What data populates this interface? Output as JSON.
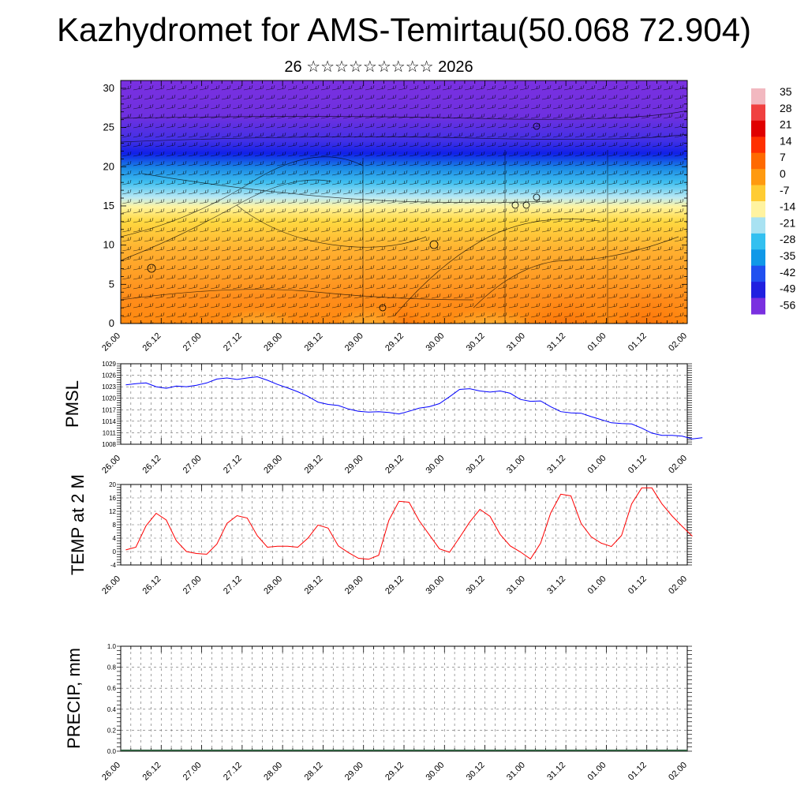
{
  "title": "Kazhydromet for AMS-Temirtau(50.068 72.904)",
  "subtitle": "26 ☆☆☆☆☆☆☆☆☆ 2026",
  "x_tick_labels": [
    "26.00",
    "26.12",
    "27.00",
    "27.12",
    "28.00",
    "28.12",
    "29.00",
    "29.12",
    "30.00",
    "30.12",
    "31.00",
    "31.12",
    "01.00",
    "01.12",
    "02.00"
  ],
  "colors": {
    "pmsl_line": "#0000ff",
    "temp_line": "#ff0000",
    "grid": "#666666"
  },
  "chart_data": [
    {
      "type": "heatmap",
      "name": "temperature-wind cross-section",
      "y_ticks": [
        0,
        5,
        10,
        15,
        20,
        25,
        30
      ],
      "ylim": [
        0,
        31
      ],
      "colorbar": {
        "labels": [
          "35",
          "28",
          "21",
          "14",
          "7",
          "0",
          "-7",
          "-14",
          "-21",
          "-28",
          "-35",
          "-42",
          "-49",
          "-56"
        ],
        "colors": [
          "#f2b8c0",
          "#f04040",
          "#e00000",
          "#ff3000",
          "#ff6a00",
          "#ff9a10",
          "#ffcc33",
          "#fff3a0",
          "#a8e2f2",
          "#33c0f0",
          "#1098e8",
          "#2050f0",
          "#2020e0",
          "#7a30e0"
        ]
      }
    },
    {
      "type": "line",
      "ylabel": "PMSL",
      "ylim": [
        1008,
        1029
      ],
      "y_ticks": [
        1008,
        1011,
        1014,
        1017,
        1020,
        1023,
        1026,
        1029
      ],
      "values": [
        1023.5,
        1023.8,
        1024,
        1023,
        1022.6,
        1023.2,
        1023,
        1023.4,
        1024,
        1025,
        1025.3,
        1024.9,
        1025.3,
        1025.6,
        1024.7,
        1023.6,
        1022.7,
        1021.7,
        1020.5,
        1019,
        1018.4,
        1018.1,
        1017.2,
        1016.6,
        1016.4,
        1016.5,
        1016.3,
        1015.9,
        1016.6,
        1017.4,
        1017.8,
        1018.6,
        1020.4,
        1022.3,
        1022.5,
        1021.9,
        1021.6,
        1021.9,
        1021.3,
        1019.7,
        1019.2,
        1019.3,
        1017.8,
        1016.5,
        1016.2,
        1016.1,
        1015.2,
        1014.4,
        1013.6,
        1013.4,
        1013.3,
        1012.2,
        1010.9,
        1010.3,
        1010.3,
        1010.1,
        1009.4,
        1009.7
      ],
      "x_start": 0.5
    },
    {
      "type": "line",
      "ylabel": "TEMP at 2 M",
      "ylim": [
        -4,
        20
      ],
      "y_ticks": [
        -4,
        0,
        4,
        8,
        12,
        16,
        20
      ],
      "values": [
        0.5,
        1.3,
        7.7,
        11.4,
        9.4,
        3.2,
        0,
        -0.6,
        -0.8,
        2.2,
        8.4,
        10.7,
        10,
        4.7,
        1.3,
        1.6,
        1.6,
        1.3,
        4,
        7.9,
        7,
        1.7,
        -0.3,
        -2,
        -2.3,
        -1.1,
        9.3,
        15,
        14.7,
        9.2,
        5,
        0.8,
        -0.2,
        4.2,
        8.8,
        12.6,
        10.5,
        5.1,
        1.7,
        -0.1,
        -2.2,
        2.5,
        11.5,
        17.1,
        16.6,
        8.4,
        4.4,
        2.5,
        1.5,
        4.8,
        14.2,
        19,
        19,
        14.2,
        10.6,
        7.5,
        4.6
      ],
      "x_start": 0.5
    },
    {
      "type": "bar",
      "ylabel": "PRECIP, mm",
      "ylim": [
        0,
        1
      ],
      "y_ticks": [
        "0.0",
        "0.2",
        "0.4",
        "0.6",
        "0.8",
        "1.0"
      ],
      "values": []
    }
  ]
}
